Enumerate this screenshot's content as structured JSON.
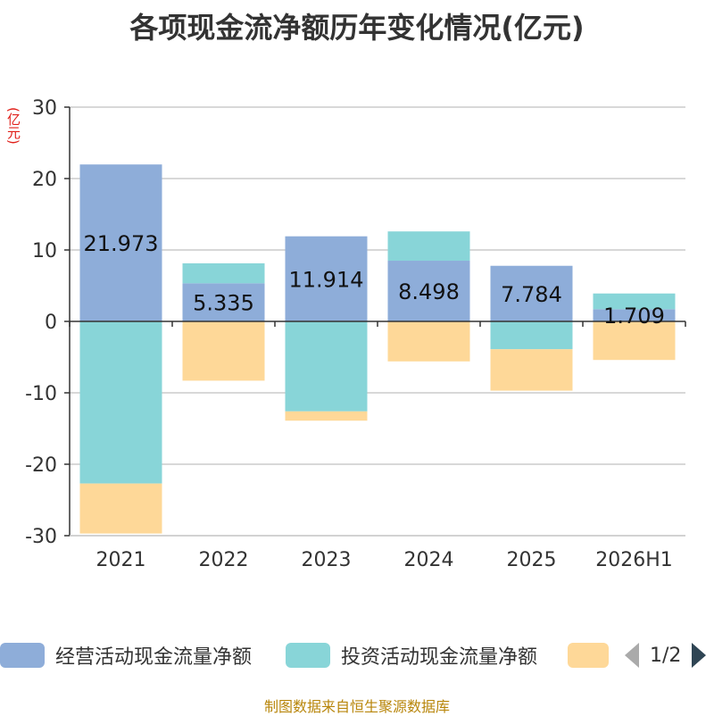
{
  "colors": {
    "operating": "#8eadd9",
    "investing": "#88d5d8",
    "financing": "#fed898",
    "axis": "#333333",
    "grid": "#cccccc",
    "unit": "#e0201a"
  },
  "legend": {
    "items": [
      "经营活动现金流量净额",
      "投资活动现金流量净额",
      ""
    ],
    "page": "1/2"
  },
  "source_note": "制图数据来自恒生聚源数据库",
  "chart_data": {
    "type": "bar",
    "stacked": true,
    "title": "各项现金流净额历年变化情况(亿元)",
    "ylabel": "(亿元)",
    "categories": [
      "2021",
      "2022",
      "2023",
      "2024",
      "2025",
      "2026H1"
    ],
    "ylim": [
      -30,
      30
    ],
    "yticks": [
      30,
      20,
      10,
      0,
      -10,
      -20,
      -30
    ],
    "grid": true,
    "legend_position": "bottom",
    "series": [
      {
        "name": "经营活动现金流量净额",
        "color_key": "operating",
        "show_labels": true,
        "values": [
          21.973,
          5.335,
          11.914,
          8.498,
          7.784,
          1.709
        ]
      },
      {
        "name": "投资活动现金流量净额",
        "color_key": "investing",
        "show_labels": false,
        "values": [
          -22.7,
          2.8,
          -12.6,
          4.1,
          -3.9,
          2.2
        ]
      },
      {
        "color_key": "financing",
        "show_labels": false,
        "values": [
          -7.0,
          -8.3,
          -1.3,
          -5.6,
          -5.8,
          -5.4
        ]
      }
    ]
  }
}
